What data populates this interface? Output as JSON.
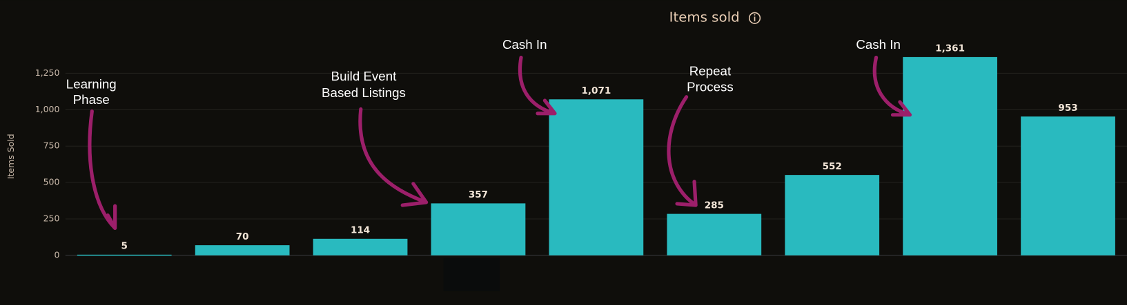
{
  "chart_data": {
    "type": "bar",
    "title": "Items sold",
    "y_label": "Items Sold",
    "categories": [
      null,
      null,
      null,
      null,
      null,
      null,
      null,
      null,
      null
    ],
    "values": [
      5,
      70,
      114,
      357,
      1071,
      285,
      552,
      1361,
      953
    ],
    "value_labels": [
      "5",
      "70",
      "114",
      "357",
      "1,071",
      "285",
      "552",
      "1,361",
      "953"
    ],
    "color": "#29babf",
    "ylim": [
      0,
      1400
    ],
    "yticks": [
      0,
      250,
      500,
      750,
      {
        "value": 1000,
        "label": "1,000"
      },
      {
        "value": 1250,
        "label": "1,250"
      }
    ],
    "grid": true,
    "annotations": [
      {
        "lines": [
          "Learning",
          "Phase"
        ]
      },
      {
        "lines": [
          "Build Event",
          "Based Listings"
        ]
      },
      {
        "lines": [
          "Cash In"
        ]
      },
      {
        "lines": [
          "Repeat",
          "Process"
        ]
      },
      {
        "lines": [
          "Cash In"
        ]
      }
    ]
  }
}
